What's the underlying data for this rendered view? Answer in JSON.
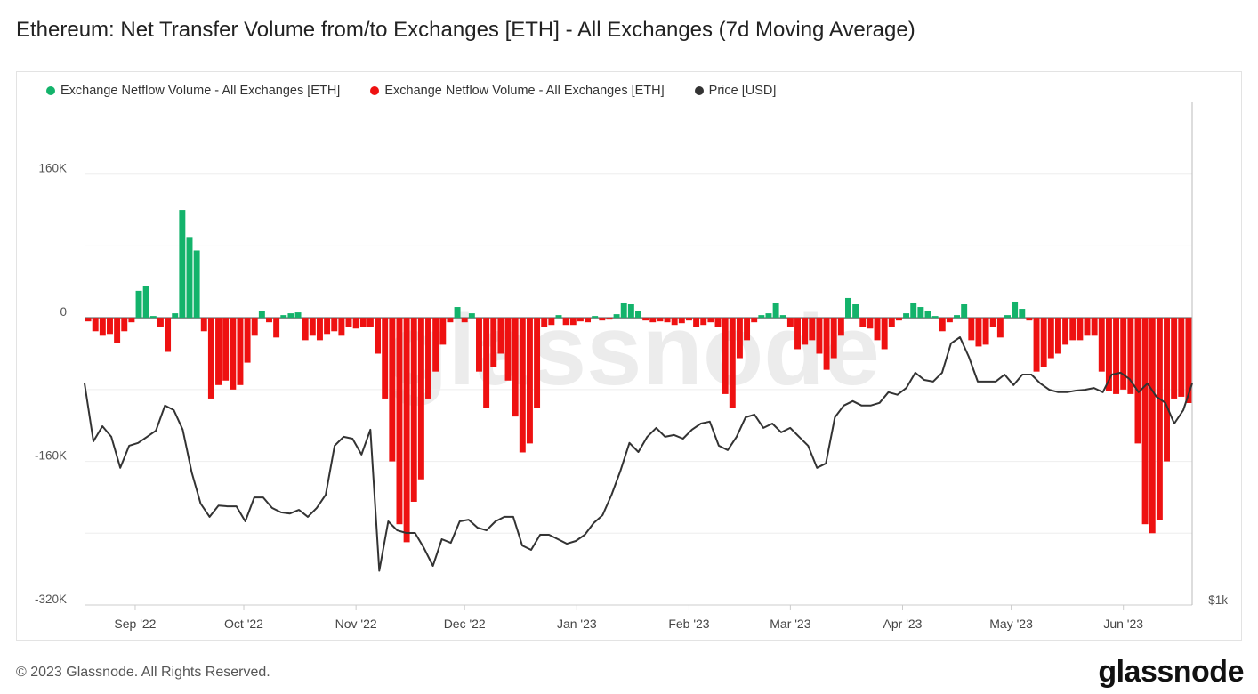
{
  "header": {
    "title": "Ethereum: Net Transfer Volume from/to Exchanges [ETH] - All Exchanges (7d Moving Average)"
  },
  "footer": {
    "copyright": "© 2023 Glassnode. All Rights Reserved.",
    "logo": "glassnode"
  },
  "watermark": "glassnode",
  "colors": {
    "positive": "#13b36b",
    "negative": "#ee1111",
    "price": "#333333",
    "grid": "#eeeeee"
  },
  "chart_data": {
    "type": "bar",
    "title": "Ethereum: Net Transfer Volume from/to Exchanges [ETH] - All Exchanges (7d Moving Average)",
    "legend": [
      {
        "name": "Exchange Netflow Volume - All Exchanges [ETH]",
        "color": "#13b36b"
      },
      {
        "name": "Exchange Netflow Volume - All Exchanges [ETH]",
        "color": "#ee1111"
      },
      {
        "name": "Price [USD]",
        "color": "#333333"
      }
    ],
    "legend_position": "top-left",
    "x_range_days": 306,
    "x_start": "2022-08-18",
    "x_ticks": [
      {
        "label": "Sep '22",
        "day": 14
      },
      {
        "label": "Oct '22",
        "day": 44
      },
      {
        "label": "Nov '22",
        "day": 75
      },
      {
        "label": "Dec '22",
        "day": 105
      },
      {
        "label": "Jan '23",
        "day": 136
      },
      {
        "label": "Feb '23",
        "day": 167
      },
      {
        "label": "Mar '23",
        "day": 195
      },
      {
        "label": "Apr '23",
        "day": 226
      },
      {
        "label": "May '23",
        "day": 256
      },
      {
        "label": "Jun '23",
        "day": 287
      }
    ],
    "y_left": {
      "unit": "K ETH",
      "ylim": [
        -320,
        240
      ],
      "gridlines": [
        160,
        80,
        0,
        -80,
        -160,
        -240,
        -320
      ],
      "tick_labels": [
        {
          "label": "160K",
          "value": 160
        },
        {
          "label": "0",
          "value": 0
        },
        {
          "label": "-160K",
          "value": -160
        },
        {
          "label": "-320K",
          "value": -320
        }
      ]
    },
    "y_right": {
      "scale": "log",
      "min_usd": 1000,
      "label": "$1k"
    },
    "netflow_step_days": 2,
    "netflow_k": [
      -4,
      -15,
      -20,
      -18,
      -28,
      -15,
      -5,
      30,
      35,
      2,
      -10,
      -38,
      5,
      120,
      90,
      75,
      -15,
      -90,
      -75,
      -70,
      -80,
      -75,
      -50,
      -20,
      8,
      -5,
      -22,
      3,
      5,
      6,
      -25,
      -20,
      -25,
      -18,
      -15,
      -20,
      -10,
      -12,
      -10,
      -10,
      -40,
      -90,
      -160,
      -230,
      -250,
      -205,
      -180,
      -90,
      -60,
      -30,
      -5,
      12,
      -5,
      5,
      -60,
      -100,
      -55,
      -40,
      -70,
      -110,
      -150,
      -140,
      -100,
      -10,
      -8,
      3,
      -8,
      -8,
      -4,
      -5,
      2,
      -3,
      -2,
      4,
      17,
      15,
      8,
      -3,
      -5,
      -4,
      -5,
      -8,
      -6,
      -3,
      -10,
      -8,
      -5,
      -10,
      -85,
      -100,
      -45,
      -25,
      -5,
      3,
      5,
      16,
      3,
      -10,
      -35,
      -30,
      -25,
      -40,
      -58,
      -45,
      -20,
      22,
      15,
      -10,
      -12,
      -25,
      -35,
      -10,
      -3,
      5,
      17,
      12,
      8,
      2,
      -15,
      -5,
      3,
      15,
      -25,
      -32,
      -30,
      -10,
      -22,
      3,
      18,
      10,
      -3,
      -60,
      -55,
      -45,
      -40,
      -30,
      -25,
      -25,
      -20,
      -20,
      -60,
      -82,
      -85,
      -80,
      -85,
      -140,
      -230,
      -240,
      -225,
      -160,
      -90,
      -88,
      -95
    ],
    "price_usd": [
      1853,
      1577,
      1645,
      1597,
      1465,
      1558,
      1570,
      1597,
      1625,
      1742,
      1720,
      1629,
      1446,
      1326,
      1278,
      1319,
      1316,
      1316,
      1262,
      1349,
      1349,
      1310,
      1294,
      1290,
      1303,
      1278,
      1310,
      1359,
      1558,
      1597,
      1589,
      1520,
      1629,
      1100,
      1262,
      1231,
      1222,
      1222,
      1172,
      1115,
      1201,
      1189,
      1262,
      1268,
      1240,
      1231,
      1262,
      1278,
      1278,
      1180,
      1166,
      1216,
      1216,
      1201,
      1186,
      1195,
      1216,
      1256,
      1284,
      1359,
      1453,
      1570,
      1531,
      1597,
      1637,
      1597,
      1605,
      1589,
      1629,
      1657,
      1666,
      1558,
      1539,
      1597,
      1686,
      1699,
      1637,
      1657,
      1617,
      1637,
      1597,
      1558,
      1465,
      1483,
      1686,
      1742,
      1764,
      1742,
      1742,
      1755,
      1808,
      1795,
      1829,
      1909,
      1871,
      1862,
      1909,
      2071,
      2107,
      1995,
      1862,
      1862,
      1862,
      1899,
      1844,
      1899,
      1899,
      1853,
      1820,
      1808,
      1808,
      1816,
      1820,
      1829,
      1808,
      1899,
      1909,
      1875,
      1808,
      1853,
      1786,
      1755,
      1657,
      1720,
      1853
    ]
  }
}
